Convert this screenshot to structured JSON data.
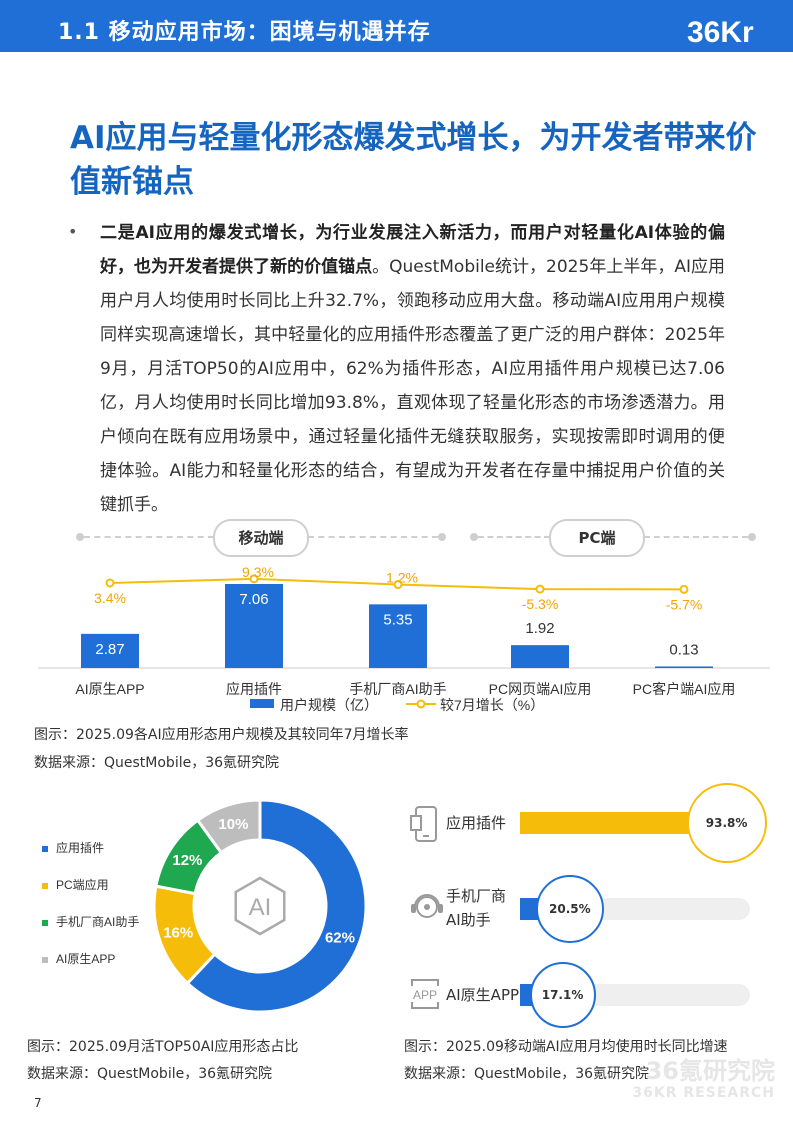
{
  "header": {
    "title": "1.1 移动应用市场：困境与机遇并存",
    "logo_text": "36Kr"
  },
  "headline": "AI应用与轻量化形态爆发式增长，为开发者带来价值新锚点",
  "paragraph": {
    "bold_part": "二是AI应用的爆发式增长，为行业发展注入新活力，而用户对轻量化AI体验的偏好，也为开发者提供了新的价值锚点",
    "normal_part": "。QuestMobile统计，2025年上半年，AI应用用户月人均使用时长同比上升32.7%，领跑移动应用大盘。移动端AI应用用户规模同样实现高速增长，其中轻量化的应用插件形态覆盖了更广泛的用户群体：2025年9月，月活TOP50的AI应用中，62%为插件形态，AI应用插件用户规模已达7.06亿，月人均使用时长同比增加93.8%，直观体现了轻量化形态的市场渗透潜力。用户倾向在既有应用场景中，通过轻量化插件无缝获取服务，实现按需即时调用的便捷体验。AI能力和轻量化形态的结合，有望成为开发者在存量中捕捉用户价值的关键抓手。"
  },
  "section_pills": {
    "mobile": "移动端",
    "pc": "PC端"
  },
  "colors": {
    "blue": "#1f6fd6",
    "yellow": "#f5bd0a",
    "green": "#1fa84f",
    "gray": "#bdbdbd"
  },
  "chart_data": [
    {
      "type": "bar+line",
      "categories": [
        "AI原生APP",
        "应用插件",
        "手机厂商AI助手",
        "PC网页端AI应用",
        "PC客户端AI应用"
      ],
      "series": [
        {
          "name": "用户规模（亿）",
          "type": "bar",
          "values": [
            2.87,
            7.06,
            5.35,
            1.92,
            0.13
          ],
          "labels": [
            "2.87",
            "7.06",
            "5.35",
            "1.92",
            "0.13"
          ]
        },
        {
          "name": "较7月增长（%）",
          "type": "line",
          "values": [
            3.4,
            9.3,
            1.2,
            -5.3,
            -5.7
          ],
          "labels": [
            "3.4%",
            "9.3%",
            "1.2%",
            "-5.3%",
            "-5.7%"
          ]
        }
      ],
      "caption": "图示：2025.09各AI应用形态用户规模及其较同年7月增长率",
      "source": "数据来源：QuestMobile，36氪研究院"
    },
    {
      "type": "pie",
      "labels": [
        "应用插件",
        "PC端应用",
        "手机厂商AI助手",
        "AI原生APP"
      ],
      "values": [
        62,
        16,
        12,
        10
      ],
      "value_labels": [
        "62%",
        "16%",
        "12%",
        "10%"
      ],
      "center_icon": "AI",
      "caption": "图示：2025.09月活TOP50AI应用形态占比",
      "source": "数据来源：QuestMobile，36氪研究院"
    },
    {
      "type": "bar",
      "categories": [
        "应用插件",
        "手机厂商AI助手",
        "AI原生APP"
      ],
      "values": [
        93.8,
        20.5,
        17.1
      ],
      "value_labels": [
        "93.8%",
        "20.5%",
        "17.1%"
      ],
      "display_labels": [
        "应用插件",
        "手机厂商\nAI助手",
        "AI原生APP"
      ],
      "icons": [
        "phone-icon",
        "assistant-icon",
        "app-icon"
      ],
      "caption": "图示：2025.09移动端AI应用月均使用时长同比增速",
      "source": "数据来源：QuestMobile，36氪研究院"
    }
  ],
  "watermark": {
    "line1": "36氪研究院",
    "line2": "36KR RESEARCH"
  },
  "page_number": "7"
}
